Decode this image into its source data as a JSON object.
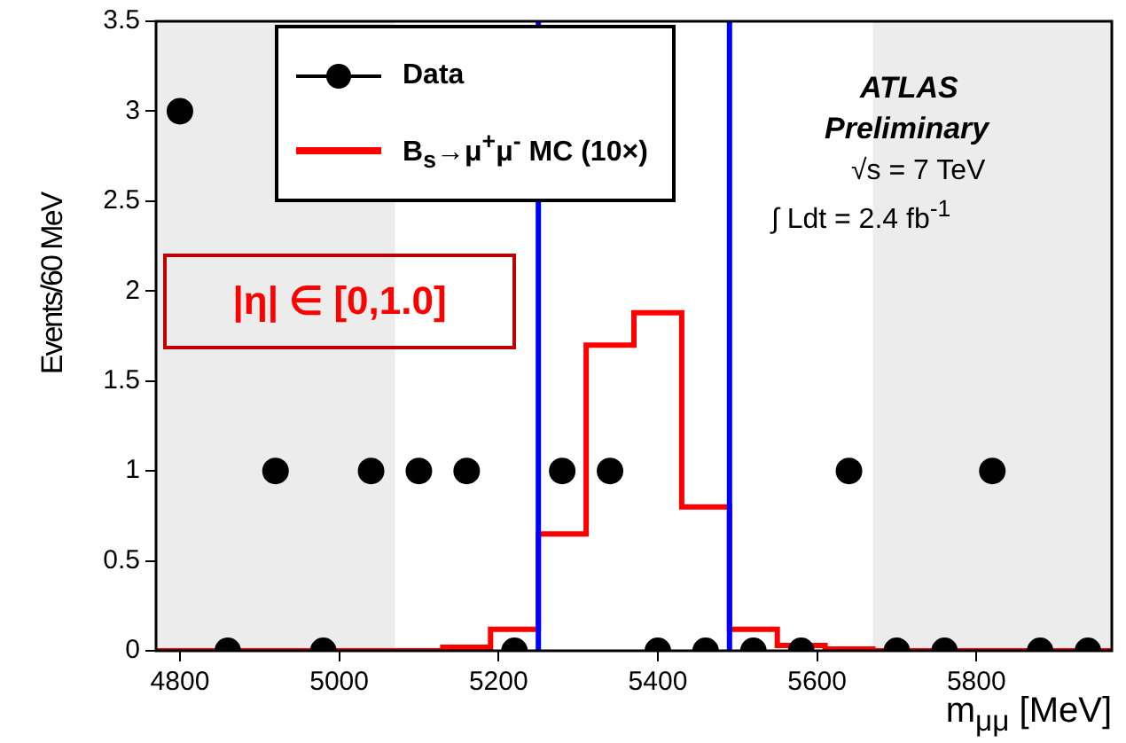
{
  "chart_data": {
    "type": "scatter",
    "xlabel": "m$_{μμ}$ [MeV]",
    "ylabel": "Events/60 MeV",
    "annotations": [
      "ATLAS",
      "Preliminary",
      "√s = 7 TeV",
      "∫ Ldt = 2.4 fb$^{-1}$",
      "|η| ∈ [0,1.0]"
    ],
    "bins": [
      4770,
      4830,
      4890,
      4950,
      5010,
      5070,
      5130,
      5190,
      5250,
      5310,
      5370,
      5430,
      5490,
      5550,
      5610,
      5670,
      5730,
      5790,
      5850,
      5910,
      5970
    ],
    "series": [
      {
        "name": "Data",
        "color": "#000000",
        "x": [
          4800,
          4860,
          4920,
          4980,
          5040,
          5100,
          5160,
          5220,
          5280,
          5340,
          5400,
          5460,
          5520,
          5580,
          5640,
          5700,
          5760,
          5820,
          5880,
          5940
        ],
        "values": [
          3,
          0,
          1,
          0,
          1,
          1,
          1,
          0,
          1,
          1,
          0,
          0,
          0,
          0,
          1,
          0,
          0,
          1,
          0,
          0
        ]
      },
      {
        "name": "B$_{s}$→μ$^{+}$μ$^{-}$ MC (10×)",
        "type": "histogram",
        "color": "#ff0000",
        "values": [
          0,
          0,
          0,
          0,
          0,
          0,
          0.02,
          0.12,
          0.65,
          1.7,
          1.88,
          0.8,
          0.12,
          0.03,
          0.01,
          0,
          0,
          0,
          0,
          0
        ]
      }
    ],
    "ref_lines": [
      {
        "axis": "x",
        "value": 5250,
        "color": "#0000ff"
      },
      {
        "axis": "x",
        "value": 5490,
        "color": "#0000ff"
      }
    ],
    "bands": [
      {
        "axis": "x",
        "from": 4770,
        "to": 5070,
        "color": "#ececec"
      },
      {
        "axis": "x",
        "from": 5670,
        "to": 5970,
        "color": "#ececec"
      }
    ],
    "xlim": [
      4770,
      5970
    ],
    "xticks": [
      4800,
      5000,
      5200,
      5400,
      5600,
      5800
    ],
    "ylim": [
      0,
      3.5
    ],
    "yticks": [
      0,
      0.5,
      1,
      1.5,
      2,
      2.5,
      3,
      3.5
    ],
    "grid": false,
    "legend": "top left",
    "marker": "circle"
  }
}
